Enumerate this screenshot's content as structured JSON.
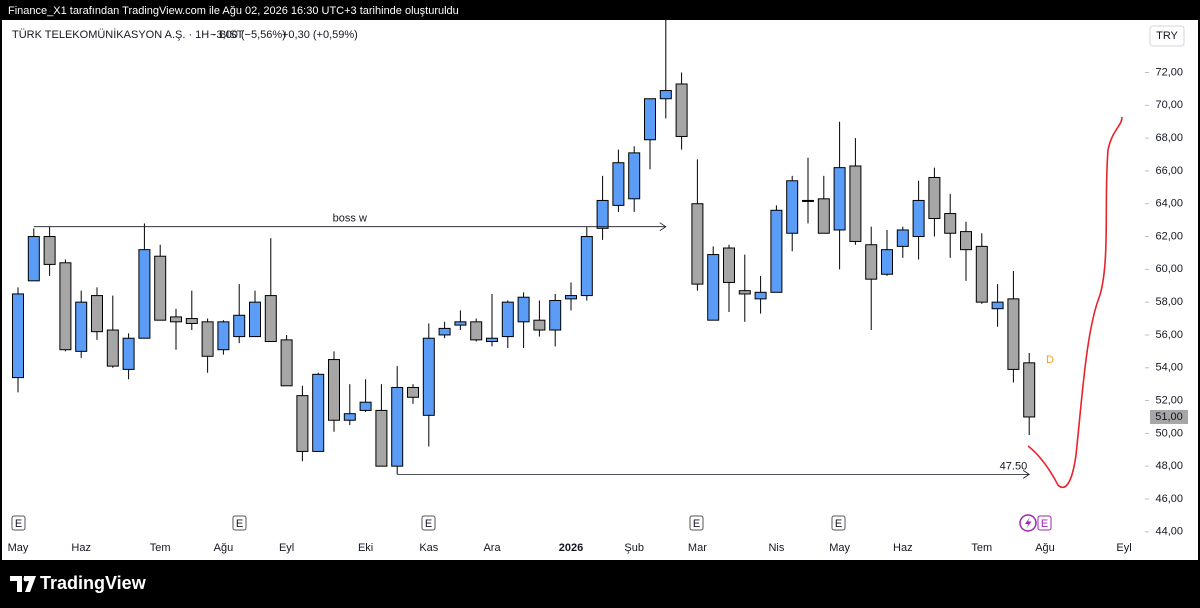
{
  "header": {
    "caption": "Finance_X1 tarafından TradingView.com ile Ağu 02, 2026 16:30 UTC+3 tarihinde oluşturuldu"
  },
  "chart_data": {
    "type": "candlestick",
    "title": "TÜRK TELEKOMÜNİKASYON A.Ş. · 1H · BIST",
    "change_label": "−3,00 (−5,56%)",
    "after_hours_label": "+0,30 (+0,59%)",
    "currency": "TRY",
    "categories": [
      "May",
      null,
      null,
      null,
      "Haz",
      null,
      null,
      null,
      null,
      "Tem",
      null,
      null,
      null,
      "Ağu",
      null,
      null,
      null,
      "Eyl",
      null,
      null,
      null,
      null,
      "Eki",
      null,
      null,
      null,
      "Kas",
      null,
      null,
      null,
      "Ara",
      null,
      null,
      null,
      null,
      "2026",
      null,
      null,
      null,
      "Şub",
      null,
      null,
      null,
      "Mar",
      null,
      null,
      null,
      null,
      "Nis",
      null,
      null,
      null,
      "May",
      null,
      null,
      null,
      "Haz",
      null,
      null,
      null,
      null,
      "Tem",
      null,
      null,
      null,
      "Ağu",
      null,
      null,
      null,
      null,
      "Eyl"
    ],
    "open": [
      53.4,
      59.3,
      62.0,
      60.4,
      55.0,
      58.4,
      56.3,
      53.9,
      55.8,
      60.8,
      57.1,
      57.0,
      56.8,
      55.1,
      55.9,
      55.9,
      58.4,
      55.7,
      52.3,
      48.9,
      54.5,
      50.8,
      51.4,
      51.4,
      48.0,
      52.8,
      51.1,
      56.0,
      56.6,
      56.8,
      55.6,
      55.9,
      56.8,
      56.9,
      56.3,
      58.2,
      58.4,
      62.5,
      63.9,
      64.3,
      67.9,
      70.4,
      71.3,
      64.0,
      56.9,
      61.3,
      58.7,
      58.2,
      58.6,
      62.2,
      64.2,
      64.3,
      62.4,
      66.3,
      61.5,
      59.7,
      61.4,
      62.0,
      65.6,
      63.4,
      62.3,
      61.4,
      57.6,
      58.2,
      54.3,
      null,
      null,
      null,
      null,
      null,
      null
    ],
    "high": [
      58.9,
      62.5,
      62.6,
      60.6,
      58.7,
      58.9,
      58.4,
      56.1,
      62.8,
      61.5,
      57.6,
      58.7,
      57.0,
      56.9,
      59.1,
      58.7,
      61.9,
      56.0,
      52.9,
      53.7,
      55.0,
      53.0,
      53.3,
      53.0,
      54.1,
      53.0,
      56.7,
      56.8,
      57.5,
      57.0,
      58.5,
      58.1,
      58.6,
      58.1,
      58.5,
      59.2,
      62.6,
      65.7,
      67.3,
      67.5,
      70.4,
      75.4,
      72.0,
      66.7,
      61.4,
      61.5,
      60.9,
      59.6,
      63.9,
      65.7,
      66.8,
      65.7,
      69.0,
      68.0,
      62.6,
      62.4,
      62.6,
      65.4,
      66.2,
      64.6,
      62.9,
      62.2,
      59.1,
      59.9,
      54.9,
      null,
      null,
      null,
      null,
      null,
      null
    ],
    "low": [
      52.5,
      59.3,
      59.6,
      55.0,
      54.6,
      55.7,
      54.0,
      53.3,
      55.8,
      56.9,
      55.1,
      56.3,
      53.7,
      54.8,
      55.5,
      55.9,
      55.6,
      52.9,
      48.3,
      48.9,
      50.1,
      50.5,
      51.3,
      48.0,
      47.5,
      51.8,
      49.2,
      55.8,
      56.3,
      55.6,
      55.3,
      55.2,
      55.2,
      55.9,
      55.3,
      57.5,
      58.1,
      61.8,
      63.5,
      63.5,
      66.1,
      69.2,
      67.3,
      58.7,
      56.9,
      57.4,
      56.8,
      57.3,
      58.6,
      61.1,
      62.8,
      62.2,
      60.0,
      61.5,
      56.3,
      59.6,
      60.7,
      60.6,
      62.0,
      60.7,
      59.3,
      57.9,
      56.5,
      53.1,
      49.9,
      null,
      null,
      null,
      null,
      null,
      null
    ],
    "close": [
      58.5,
      62.0,
      60.3,
      55.1,
      58.0,
      56.2,
      54.1,
      55.8,
      61.2,
      56.9,
      56.8,
      56.7,
      54.7,
      56.8,
      57.2,
      58.0,
      55.6,
      52.9,
      48.9,
      53.6,
      50.8,
      51.2,
      51.9,
      48.0,
      52.8,
      52.2,
      55.8,
      56.4,
      56.8,
      55.7,
      55.8,
      58.0,
      58.3,
      56.3,
      58.1,
      58.4,
      62.0,
      64.2,
      66.5,
      67.1,
      70.4,
      70.9,
      68.1,
      59.1,
      60.9,
      59.2,
      58.5,
      58.6,
      63.6,
      65.4,
      64.2,
      62.2,
      66.2,
      61.7,
      59.4,
      61.2,
      62.4,
      64.2,
      63.1,
      62.2,
      61.2,
      58.0,
      58.0,
      53.9,
      51.0,
      null,
      null,
      null,
      null,
      null,
      null
    ],
    "up_color": "#5b9cf6",
    "down_color": "#a6a6a6",
    "wick_color": "#000000",
    "ylim": [
      43.5,
      75.2
    ],
    "yticks": [
      {
        "value": 44,
        "label": "44,00"
      },
      {
        "value": 46,
        "label": "46,00"
      },
      {
        "value": 48,
        "label": "48,00"
      },
      {
        "value": 50,
        "label": "50,00"
      },
      {
        "value": 52,
        "label": "52,00"
      },
      {
        "value": 54,
        "label": "54,00"
      },
      {
        "value": 56,
        "label": "56,00"
      },
      {
        "value": 58,
        "label": "58,00"
      },
      {
        "value": 60,
        "label": "60,00"
      },
      {
        "value": 62,
        "label": "62,00"
      },
      {
        "value": 64,
        "label": "64,00"
      },
      {
        "value": 66,
        "label": "66,00"
      },
      {
        "value": 68,
        "label": "68,00"
      },
      {
        "value": 70,
        "label": "70,00"
      },
      {
        "value": 72,
        "label": "72,00"
      }
    ],
    "grid": false,
    "last_price_label": "51,00",
    "annotations": [
      {
        "label": "boss w",
        "value": 62.6
      },
      {
        "label": "47.50",
        "value": 47.5
      }
    ],
    "event_marker": "E",
    "dividend_marker": "D"
  },
  "footer": {
    "brand": "TradingView"
  }
}
